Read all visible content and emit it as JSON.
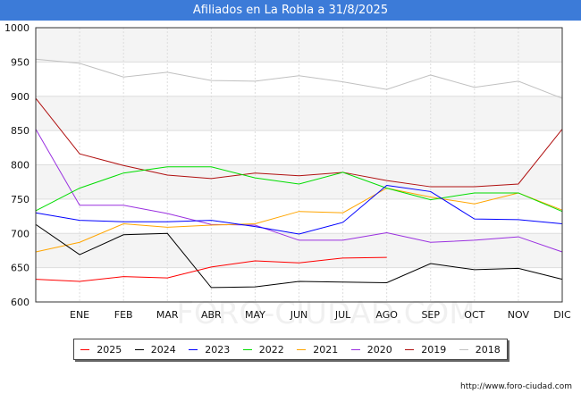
{
  "header": {
    "title": "Afiliados en La Robla a 31/8/2025"
  },
  "source": "http://www.foro-ciudad.com",
  "watermark": "foro-ciudad.com",
  "chart_data": {
    "type": "line",
    "title": "Afiliados en La Robla a 31/8/2025",
    "xlabel": "",
    "ylabel": "",
    "ylim": [
      600,
      1000
    ],
    "yticks": [
      600,
      650,
      700,
      750,
      800,
      850,
      900,
      950,
      1000
    ],
    "categories": [
      "",
      "ENE",
      "FEB",
      "MAR",
      "ABR",
      "MAY",
      "JUN",
      "JUL",
      "AGO",
      "SEP",
      "OCT",
      "NOV",
      "DIC"
    ],
    "series": [
      {
        "name": "2025",
        "color": "#ff0000",
        "values": [
          633,
          630,
          637,
          635,
          651,
          660,
          657,
          664,
          665,
          null,
          null,
          null,
          null
        ]
      },
      {
        "name": "2024",
        "color": "#000000",
        "values": [
          713,
          669,
          698,
          700,
          621,
          622,
          630,
          629,
          628,
          656,
          647,
          649,
          633
        ]
      },
      {
        "name": "2023",
        "color": "#0000ff",
        "values": [
          730,
          719,
          717,
          717,
          719,
          710,
          699,
          716,
          770,
          761,
          721,
          720,
          714
        ]
      },
      {
        "name": "2022",
        "color": "#00dd00",
        "values": [
          733,
          766,
          788,
          797,
          797,
          781,
          772,
          789,
          766,
          749,
          759,
          759,
          732
        ]
      },
      {
        "name": "2021",
        "color": "#ffa500",
        "values": [
          673,
          687,
          714,
          709,
          712,
          714,
          732,
          730,
          766,
          753,
          743,
          759,
          734
        ]
      },
      {
        "name": "2020",
        "color": "#9a30e0",
        "values": [
          852,
          741,
          741,
          729,
          713,
          712,
          690,
          690,
          701,
          687,
          690,
          695,
          673
        ]
      },
      {
        "name": "2019",
        "color": "#b01010",
        "values": [
          897,
          816,
          799,
          785,
          780,
          788,
          784,
          789,
          777,
          768,
          768,
          772,
          852
        ]
      },
      {
        "name": "2018",
        "color": "#c0c0c0",
        "values": [
          954,
          948,
          928,
          935,
          923,
          922,
          930,
          921,
          910,
          931,
          913,
          922,
          897
        ]
      }
    ],
    "grid": true,
    "legend": "bottom"
  }
}
